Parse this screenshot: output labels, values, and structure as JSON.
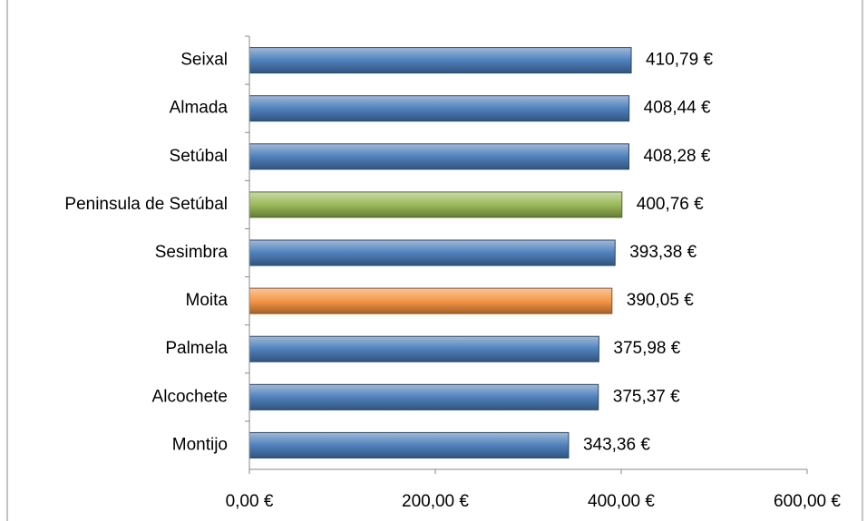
{
  "chart_data": {
    "type": "bar",
    "orientation": "horizontal",
    "categories": [
      "Seixal",
      "Almada",
      "Setúbal",
      "Peninsula de Setúbal",
      "Sesimbra",
      "Moita",
      "Palmela",
      "Alcochete",
      "Montijo"
    ],
    "values": [
      410.79,
      408.44,
      408.28,
      400.76,
      393.38,
      390.05,
      375.98,
      375.37,
      343.36
    ],
    "value_labels": [
      "410,79 €",
      "408,44 €",
      "408,28 €",
      "400,76 €",
      "393,38 €",
      "390,05 €",
      "375,98 €",
      "375,37 €",
      "343,36 €"
    ],
    "colors": [
      "#4f81bd",
      "#4f81bd",
      "#4f81bd",
      "#9bbb59",
      "#4f81bd",
      "#f79646",
      "#4f81bd",
      "#4f81bd",
      "#4f81bd"
    ],
    "xlim": [
      0,
      600
    ],
    "xticks": [
      {
        "value": 0,
        "label": "0,00 €"
      },
      {
        "value": 200,
        "label": "200,00 €"
      },
      {
        "value": 400,
        "label": "400,00 €"
      },
      {
        "value": 600,
        "label": "600,00 €"
      }
    ],
    "grid": false
  }
}
